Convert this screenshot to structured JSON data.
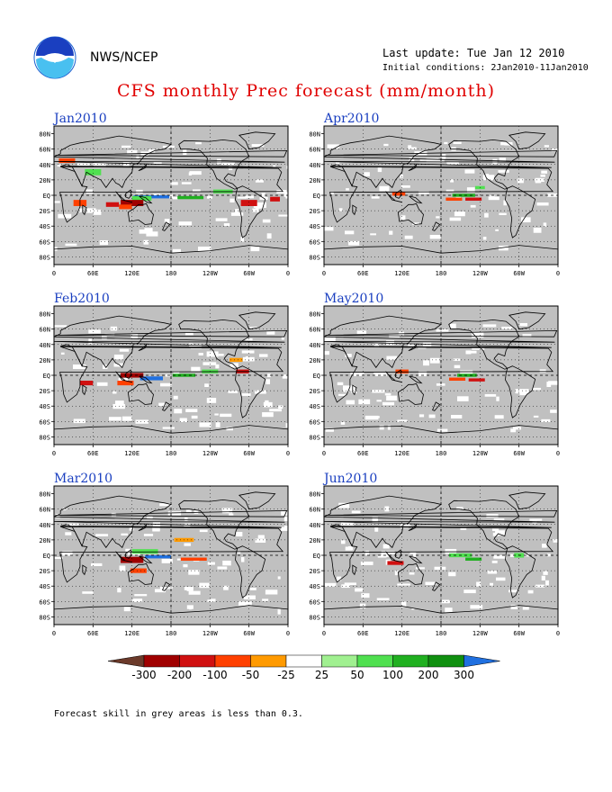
{
  "header": {
    "org": "NWS/NCEP",
    "last_update": "Last update: Tue Jan 12 2010",
    "initial_conditions": "Initial conditions: 2Jan2010-11Jan2010",
    "title": "CFS monthly Prec forecast (mm/month)"
  },
  "axes": {
    "lat_labels": [
      "80N",
      "60N",
      "40N",
      "20N",
      "EQ",
      "20S",
      "40S",
      "60S",
      "80S"
    ],
    "lon_labels": [
      "0",
      "60E",
      "120E",
      "180",
      "120W",
      "60W",
      "0"
    ]
  },
  "panels": [
    {
      "id": "jan",
      "title": "Jan2010"
    },
    {
      "id": "apr",
      "title": "Apr2010"
    },
    {
      "id": "feb",
      "title": "Feb2010"
    },
    {
      "id": "may",
      "title": "May2010"
    },
    {
      "id": "mar",
      "title": "Mar2010"
    },
    {
      "id": "jun",
      "title": "Jun2010"
    }
  ],
  "colorbar": {
    "labels": [
      "-300",
      "-200",
      "-100",
      "-50",
      "-25",
      "25",
      "50",
      "100",
      "200",
      "300"
    ],
    "colors": [
      "#6b3a2a",
      "#a00000",
      "#d01010",
      "#ff4000",
      "#ff9a00",
      "#ffffff",
      "#a0f090",
      "#50e050",
      "#20b020",
      "#109010",
      "#2070e0"
    ]
  },
  "colors": {
    "mask": "#c0c0c0",
    "land_line": "#000000",
    "title": "#e00000",
    "panel_title": "#1a3fc0"
  },
  "footer": {
    "note": "Forecast skill in grey areas is less than 0.3."
  }
}
